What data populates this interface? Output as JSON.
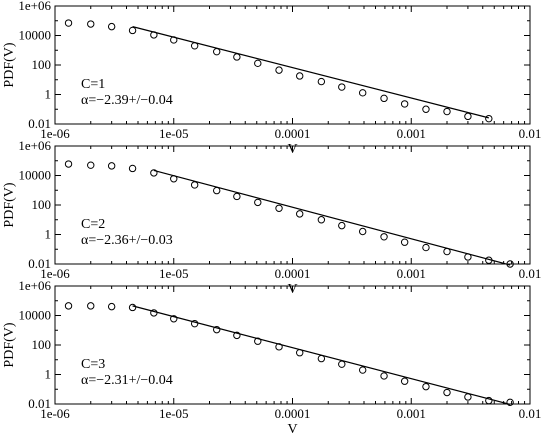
{
  "chart_data": [
    {
      "type": "scatter",
      "xscale": "log",
      "yscale": "log",
      "xlim": [
        1e-06,
        0.01
      ],
      "ylim": [
        0.01,
        1000000
      ],
      "xlabel": "V",
      "ylabel": "PDF(V)",
      "xticks": [
        "1e-06",
        "1e-05",
        "0.0001",
        "0.001",
        "0.01"
      ],
      "yticks": [
        "0.01",
        "1",
        "100",
        "10000",
        "1e+06"
      ],
      "annotation": [
        "C=1",
        "α=−2.39+/−0.04"
      ],
      "grid": false,
      "series": [
        {
          "kind": "points",
          "x": [
            1.3e-06,
            2e-06,
            3e-06,
            4.5e-06,
            6.8e-06,
            1e-05,
            1.5e-05,
            2.3e-05,
            3.4e-05,
            5.1e-05,
            7.7e-05,
            0.000115,
            0.000175,
            0.00026,
            0.00039,
            0.00059,
            0.00088,
            0.00133,
            0.002,
            0.003,
            0.0045
          ],
          "y": [
            70000,
            60000,
            40000,
            22000,
            11000,
            5000,
            2000,
            800,
            350,
            130,
            45,
            18,
            7.5,
            3.2,
            1.3,
            0.55,
            0.23,
            0.1,
            0.07,
            0.033,
            0.023
          ]
        },
        {
          "kind": "fit",
          "x": [
            4.5e-06,
            0.0045
          ],
          "y": [
            40000,
            0.026
          ]
        }
      ]
    },
    {
      "type": "scatter",
      "xscale": "log",
      "yscale": "log",
      "xlim": [
        1e-06,
        0.01
      ],
      "ylim": [
        0.01,
        1000000
      ],
      "xlabel": "V",
      "ylabel": "PDF(V)",
      "xticks": [
        "1e-06",
        "1e-05",
        "0.0001",
        "0.001",
        "0.01"
      ],
      "yticks": [
        "0.01",
        "1",
        "100",
        "10000",
        "1e+06"
      ],
      "annotation": [
        "C=2",
        "α=−2.36+/−0.03"
      ],
      "grid": false,
      "series": [
        {
          "kind": "points",
          "x": [
            1.3e-06,
            2e-06,
            3e-06,
            4.5e-06,
            6.8e-06,
            1e-05,
            1.5e-05,
            2.3e-05,
            3.4e-05,
            5.1e-05,
            7.7e-05,
            0.000115,
            0.000175,
            0.00026,
            0.00039,
            0.00059,
            0.00088,
            0.00133,
            0.002,
            0.003,
            0.0045,
            0.0068
          ],
          "y": [
            60000,
            50000,
            45000,
            30000,
            15000,
            6000,
            2300,
            950,
            380,
            150,
            60,
            25,
            10,
            4,
            1.6,
            0.7,
            0.3,
            0.13,
            0.07,
            0.03,
            0.018,
            0.01
          ]
        },
        {
          "kind": "fit",
          "x": [
            6.8e-06,
            0.0068
          ],
          "y": [
            22000,
            0.0085
          ]
        }
      ]
    },
    {
      "type": "scatter",
      "xscale": "log",
      "yscale": "log",
      "xlim": [
        1e-06,
        0.01
      ],
      "ylim": [
        0.01,
        1000000
      ],
      "xlabel": "V",
      "ylabel": "PDF(V)",
      "xticks": [
        "1e-06",
        "1e-05",
        "0.0001",
        "0.001",
        "0.01"
      ],
      "yticks": [
        "0.01",
        "1",
        "100",
        "10000",
        "1e+06"
      ],
      "annotation": [
        "C=3",
        "α=−2.31+/−0.04"
      ],
      "grid": false,
      "series": [
        {
          "kind": "points",
          "x": [
            1.3e-06,
            2e-06,
            3e-06,
            4.5e-06,
            6.8e-06,
            1e-05,
            1.5e-05,
            2.3e-05,
            3.4e-05,
            5.1e-05,
            7.7e-05,
            0.000115,
            0.000175,
            0.00026,
            0.00039,
            0.00059,
            0.00088,
            0.00133,
            0.002,
            0.003,
            0.0045,
            0.0068
          ],
          "y": [
            45000,
            45000,
            40000,
            35000,
            15000,
            6000,
            2800,
            1100,
            450,
            180,
            75,
            30,
            12,
            5,
            2,
            0.8,
            0.35,
            0.15,
            0.06,
            0.03,
            0.017,
            0.013
          ]
        },
        {
          "kind": "fit",
          "x": [
            4.5e-06,
            0.0068
          ],
          "y": [
            45000,
            0.0093
          ]
        }
      ]
    }
  ]
}
